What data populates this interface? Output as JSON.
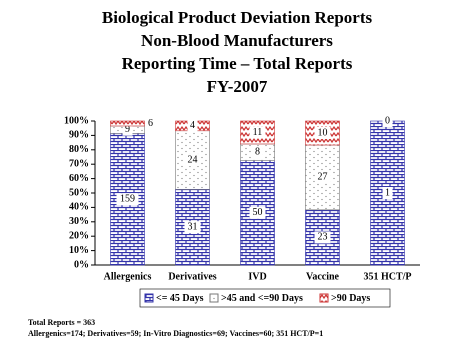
{
  "chart_data": {
    "type": "bar",
    "stacking": "percent",
    "title": [
      "Biological Product Deviation Reports",
      "Non-Blood Manufacturers",
      "Reporting Time – Total Reports",
      "FY-2007"
    ],
    "categories": [
      "Allergenics",
      "Derivatives",
      "IVD",
      "Vaccine",
      "351 HCT/P"
    ],
    "series": [
      {
        "name": "<= 45 Days",
        "color": "#3333aa",
        "pattern": "brick",
        "values": [
          159,
          31,
          50,
          23,
          1
        ]
      },
      {
        "name": ">45 and <=90 Days",
        "color": "#777777",
        "pattern": "dots",
        "values": [
          9,
          24,
          8,
          27,
          0
        ]
      },
      {
        "name": ">90 Days",
        "color": "#cc3333",
        "pattern": "zigzag",
        "values": [
          6,
          4,
          11,
          10,
          0
        ],
        "value_labels": [
          "6",
          "4",
          "11",
          "10",
          null
        ]
      }
    ],
    "ylim": [
      0,
      100
    ],
    "yticks": [
      {
        "value": 0,
        "label": "0%"
      },
      {
        "value": 10,
        "label": "10%"
      },
      {
        "value": 20,
        "label": "20%"
      },
      {
        "value": 30,
        "label": "30%"
      },
      {
        "value": 40,
        "label": "40%"
      },
      {
        "value": 50,
        "label": "50%"
      },
      {
        "value": 60,
        "label": "60%"
      },
      {
        "value": 70,
        "label": "70%"
      },
      {
        "value": 80,
        "label": "80%"
      },
      {
        "value": 90,
        "label": "90%"
      },
      {
        "value": 100,
        "label": "100%"
      }
    ],
    "legend": "bottom",
    "notes": [
      "Total Reports = 363",
      "Allergenics=174; Derivatives=59; In-Vitro Diagnostics=69; Vaccines=60; 351 HCT/P=1"
    ]
  }
}
